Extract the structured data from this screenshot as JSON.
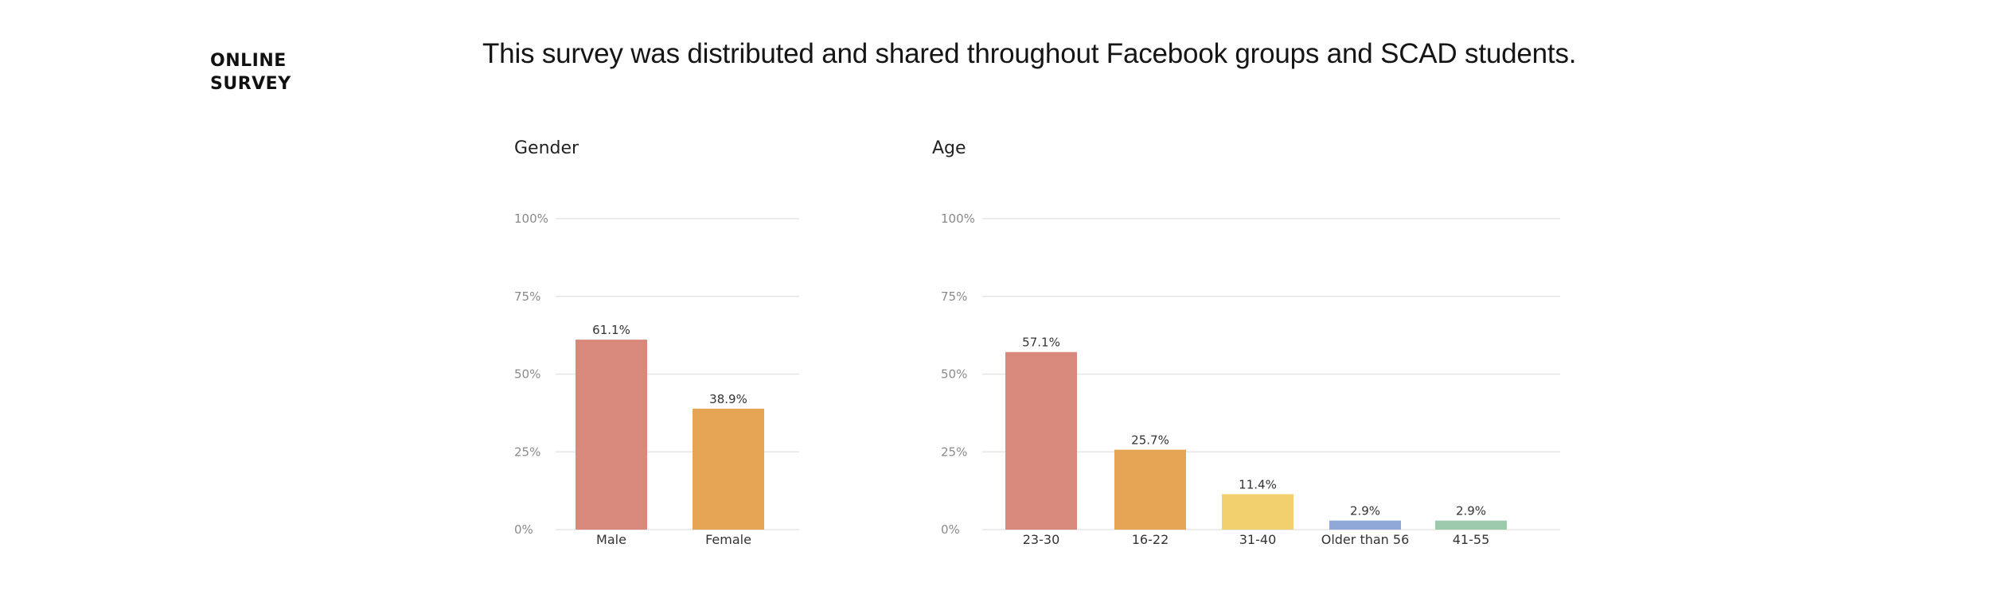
{
  "section": {
    "line1": "ONLINE",
    "line2": "SURVEY"
  },
  "headline": "This survey was distributed and shared throughout Facebook groups and SCAD students.",
  "chart_data": [
    {
      "type": "bar",
      "title": "Gender",
      "categories": [
        "Male",
        "Female"
      ],
      "values": [
        61.1,
        38.9
      ],
      "value_labels": [
        "61.1%",
        "38.9%"
      ],
      "colors": [
        "#d9887c",
        "#e6a555"
      ],
      "ylim": [
        0,
        100
      ],
      "yticks": [
        0,
        25,
        50,
        75,
        100
      ],
      "ytick_labels": [
        "0%",
        "25%",
        "50%",
        "75%",
        "100%"
      ],
      "grid": true,
      "xlabel": "",
      "ylabel": ""
    },
    {
      "type": "bar",
      "title": "Age",
      "categories": [
        "23-30",
        "16-22",
        "31-40",
        "Older than 56",
        "41-55"
      ],
      "values": [
        57.1,
        25.7,
        11.4,
        2.9,
        2.9
      ],
      "value_labels": [
        "57.1%",
        "25.7%",
        "11.4%",
        "2.9%",
        "2.9%"
      ],
      "colors": [
        "#d9887c",
        "#e6a555",
        "#f2d06e",
        "#8fa8d6",
        "#9ccaab"
      ],
      "ylim": [
        0,
        100
      ],
      "yticks": [
        0,
        25,
        50,
        75,
        100
      ],
      "ytick_labels": [
        "0%",
        "25%",
        "50%",
        "75%",
        "100%"
      ],
      "grid": true,
      "xlabel": "",
      "ylabel": ""
    }
  ]
}
